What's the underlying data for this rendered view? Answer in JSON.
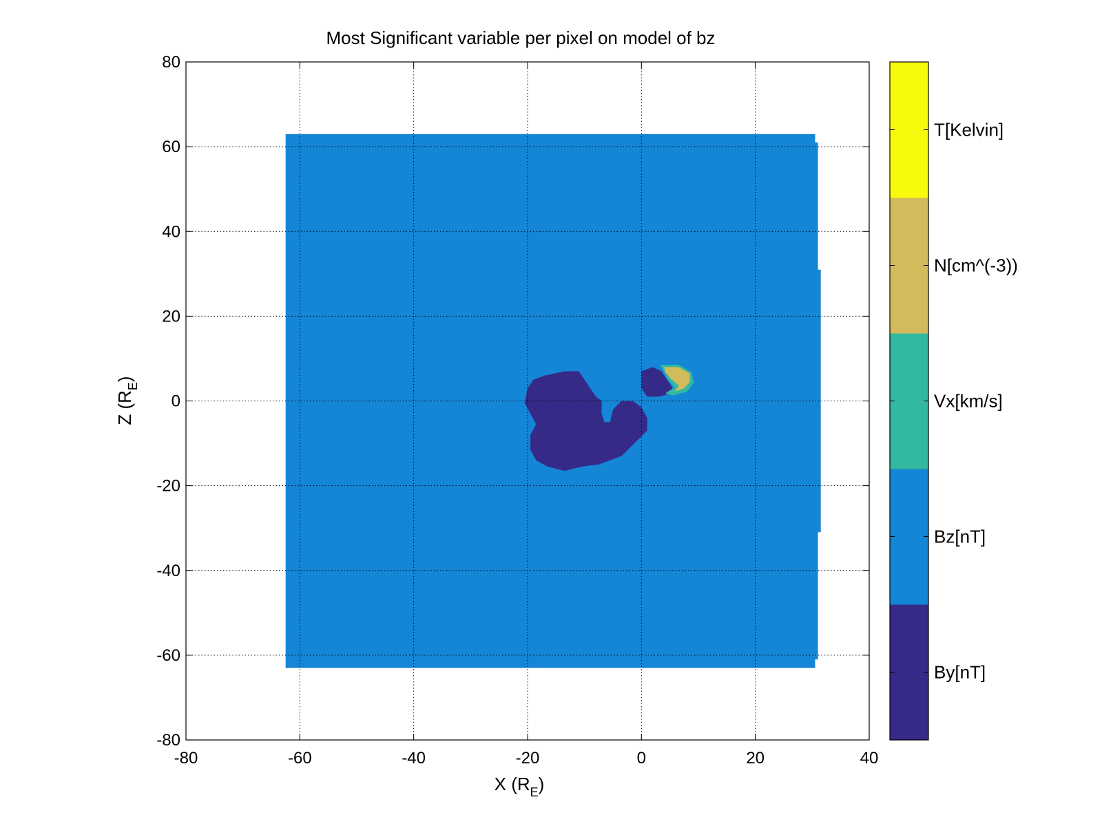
{
  "chart_data": {
    "type": "heatmap",
    "title": "Most Significant variable per pixel on model of bz",
    "xlabel": {
      "main": "X (R",
      "sub": "E",
      "close": ")"
    },
    "ylabel": {
      "main": "Z (R",
      "sub": "E",
      "close": ")"
    },
    "xlim": [
      -80,
      40
    ],
    "ylim": [
      -80,
      80
    ],
    "xticks": [
      -80,
      -60,
      -40,
      -20,
      0,
      20,
      40
    ],
    "yticks": [
      -80,
      -60,
      -40,
      -20,
      0,
      20,
      40,
      60,
      80
    ],
    "grid": true,
    "colorbar": {
      "position": "right",
      "categories": [
        {
          "label": "By[nT]",
          "color": "#352a87"
        },
        {
          "label": "Bz[nT]",
          "color": "#1585d6"
        },
        {
          "label": "Vx[km/s]",
          "color": "#33b8a1"
        },
        {
          "label": "N[cm^(-3))",
          "color": "#d2bb5a"
        },
        {
          "label": "T[Kelvin]",
          "color": "#f8fa0d"
        }
      ]
    },
    "regions": [
      {
        "variable": "Bz[nT]",
        "outline": [
          [
            -62.5,
            63
          ],
          [
            30.5,
            63
          ],
          [
            30.5,
            61
          ],
          [
            31,
            61
          ],
          [
            31,
            31
          ],
          [
            31.5,
            31
          ],
          [
            31.5,
            -31
          ],
          [
            31,
            -31
          ],
          [
            31,
            -61
          ],
          [
            30.5,
            -61
          ],
          [
            30.5,
            -63
          ],
          [
            -62.5,
            -63
          ]
        ]
      },
      {
        "variable": "By[nT]",
        "outline": [
          [
            -20,
            3
          ],
          [
            -19,
            5
          ],
          [
            -17,
            6
          ],
          [
            -13.5,
            7
          ],
          [
            -11,
            7
          ],
          [
            -10,
            5
          ],
          [
            -9,
            3
          ],
          [
            -8,
            1
          ],
          [
            -7,
            0
          ],
          [
            -7,
            -3
          ],
          [
            -6.5,
            -5
          ],
          [
            -5.5,
            -5
          ],
          [
            -5,
            -2
          ],
          [
            -3.5,
            0
          ],
          [
            -1.5,
            0
          ],
          [
            0,
            -1.5
          ],
          [
            1,
            -4
          ],
          [
            1,
            -7
          ],
          [
            -0.5,
            -9
          ],
          [
            -2,
            -11
          ],
          [
            -3.5,
            -13
          ],
          [
            -7.5,
            -15
          ],
          [
            -10.5,
            -15.5
          ],
          [
            -13.5,
            -16.5
          ],
          [
            -16.5,
            -15.5
          ],
          [
            -18.5,
            -14
          ],
          [
            -19.5,
            -11.5
          ],
          [
            -19.5,
            -8
          ],
          [
            -18.5,
            -5.5
          ],
          [
            -19.5,
            -3
          ],
          [
            -20.5,
            -0.5
          ]
        ]
      },
      {
        "variable": "By[nT]",
        "outline": [
          [
            0,
            7
          ],
          [
            2,
            8
          ],
          [
            3.5,
            7
          ],
          [
            4.5,
            5
          ],
          [
            5.5,
            3
          ],
          [
            4.5,
            1.5
          ],
          [
            3,
            1
          ],
          [
            1,
            1
          ],
          [
            0,
            3
          ]
        ]
      },
      {
        "variable": "Vx[km/s]",
        "outline": [
          [
            3.3,
            8.5
          ],
          [
            6.5,
            8.6
          ],
          [
            8.8,
            6.8
          ],
          [
            9.2,
            4.3
          ],
          [
            8,
            2.2
          ],
          [
            5.5,
            1.3
          ],
          [
            4.2,
            1.8
          ],
          [
            5.8,
            3.2
          ],
          [
            4.6,
            5.2
          ]
        ]
      },
      {
        "variable": "N[cm^(-3))",
        "outline": [
          [
            4,
            8
          ],
          [
            6.5,
            8
          ],
          [
            8.5,
            6.5
          ],
          [
            8.5,
            4.5
          ],
          [
            7.5,
            3
          ],
          [
            5.8,
            2.2
          ],
          [
            6.6,
            3.6
          ],
          [
            5.2,
            5.2
          ],
          [
            4.2,
            6.8
          ]
        ]
      }
    ]
  }
}
